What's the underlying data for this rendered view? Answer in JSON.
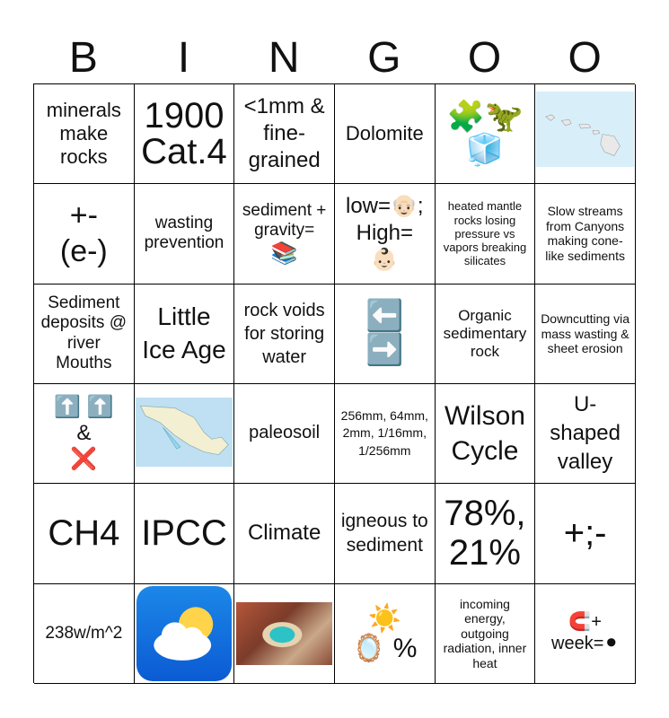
{
  "header": [
    "B",
    "I",
    "N",
    "G",
    "O",
    "O"
  ],
  "cells": {
    "r1c1": "minerals make rocks",
    "r1c2_a": "1900",
    "r1c2_b": "Cat.4",
    "r1c3": "<1mm & fine-grained",
    "r1c4": "Dolomite",
    "r1c5": "🧩🦖🧊",
    "r1c6": "",
    "r2c1_a": "+-",
    "r2c1_b": "(e-)",
    "r2c2": "wasting prevention",
    "r2c3": "sediment + gravity=",
    "r2c3_emoji": "📚",
    "r2c4_a": "low=👴🏻;",
    "r2c4_b": "High=",
    "r2c4_emoji": "👶🏻",
    "r2c5": "heated mantle rocks losing pressure vs vapors breaking silicates",
    "r2c6": "Slow streams from Canyons making cone-like sediments",
    "r3c1": "Sediment deposits @ river Mouths",
    "r3c2": "Little Ice Age",
    "r3c3": "rock voids for storing water",
    "r3c4_a": "⬅️",
    "r3c4_b": "➡️",
    "r3c5": "Organic sedimentary rock",
    "r3c6": "Downcutting via mass wasting & sheet erosion",
    "r4c1_a": "⬆️ ⬆️",
    "r4c1_b": "&",
    "r4c1_c": "❌",
    "r4c2": "",
    "r4c3": "paleosoil",
    "r4c4": "256mm, 64mm, 2mm, 1/16mm, 1/256mm",
    "r4c5": "Wilson Cycle",
    "r4c6": "U-shaped valley",
    "r5c1": "CH4",
    "r5c2": "IPCC",
    "r5c3": "Climate",
    "r5c4": "igneous to sediment",
    "r5c5_a": "78%,",
    "r5c5_b": "21%",
    "r5c6": "+;-",
    "r6c1": "238w/m^2",
    "r6c2": "",
    "r6c3": "",
    "r6c4_a": "☀️",
    "r6c4_b": "🪞 %",
    "r6c5": "incoming energy, outgoing radiation, inner heat",
    "r6c6_a": "🧲+",
    "r6c6_b": "week=⚫"
  }
}
